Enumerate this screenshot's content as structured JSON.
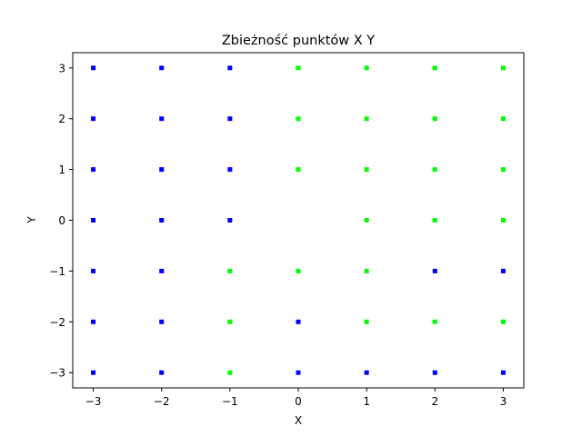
{
  "chart_data": {
    "type": "scatter",
    "title": "Zbieżność punktów X Y",
    "xlabel": "X",
    "ylabel": "Y",
    "xlim": [
      -3.3,
      3.3
    ],
    "ylim": [
      -3.3,
      3.3
    ],
    "xticks": [
      -3,
      -2,
      -1,
      0,
      1,
      2,
      3
    ],
    "yticks": [
      -3,
      -2,
      -1,
      0,
      1,
      2,
      3
    ],
    "tick_labels_x": [
      "−3",
      "−2",
      "−1",
      "0",
      "1",
      "2",
      "3"
    ],
    "tick_labels_y": [
      "−3",
      "−2",
      "−1",
      "0",
      "1",
      "2",
      "3"
    ],
    "grid": false,
    "legend": "none",
    "colors": {
      "blue": "#0000ff",
      "green": "#00ff00"
    },
    "series": [
      {
        "color": "#0000ff",
        "points": [
          [
            -3,
            3
          ],
          [
            -2,
            3
          ],
          [
            -1,
            3
          ],
          [
            -3,
            2
          ],
          [
            -2,
            2
          ],
          [
            -1,
            2
          ],
          [
            -3,
            1
          ],
          [
            -2,
            1
          ],
          [
            -1,
            1
          ],
          [
            -3,
            0
          ],
          [
            -2,
            0
          ],
          [
            -1,
            0
          ],
          [
            -3,
            -1
          ],
          [
            -2,
            -1
          ],
          [
            2,
            -1
          ],
          [
            3,
            -1
          ],
          [
            -3,
            -2
          ],
          [
            -2,
            -2
          ],
          [
            0,
            -2
          ],
          [
            -3,
            -3
          ],
          [
            -2,
            -3
          ],
          [
            0,
            -3
          ],
          [
            1,
            -3
          ],
          [
            2,
            -3
          ],
          [
            3,
            -3
          ]
        ]
      },
      {
        "color": "#00ff00",
        "points": [
          [
            0,
            3
          ],
          [
            1,
            3
          ],
          [
            2,
            3
          ],
          [
            3,
            3
          ],
          [
            0,
            2
          ],
          [
            1,
            2
          ],
          [
            2,
            2
          ],
          [
            3,
            2
          ],
          [
            0,
            1
          ],
          [
            1,
            1
          ],
          [
            2,
            1
          ],
          [
            3,
            1
          ],
          [
            1,
            0
          ],
          [
            2,
            0
          ],
          [
            3,
            0
          ],
          [
            -1,
            -1
          ],
          [
            0,
            -1
          ],
          [
            1,
            -1
          ],
          [
            -1,
            -2
          ],
          [
            1,
            -2
          ],
          [
            2,
            -2
          ],
          [
            3,
            -2
          ],
          [
            -1,
            -3
          ]
        ]
      }
    ]
  }
}
